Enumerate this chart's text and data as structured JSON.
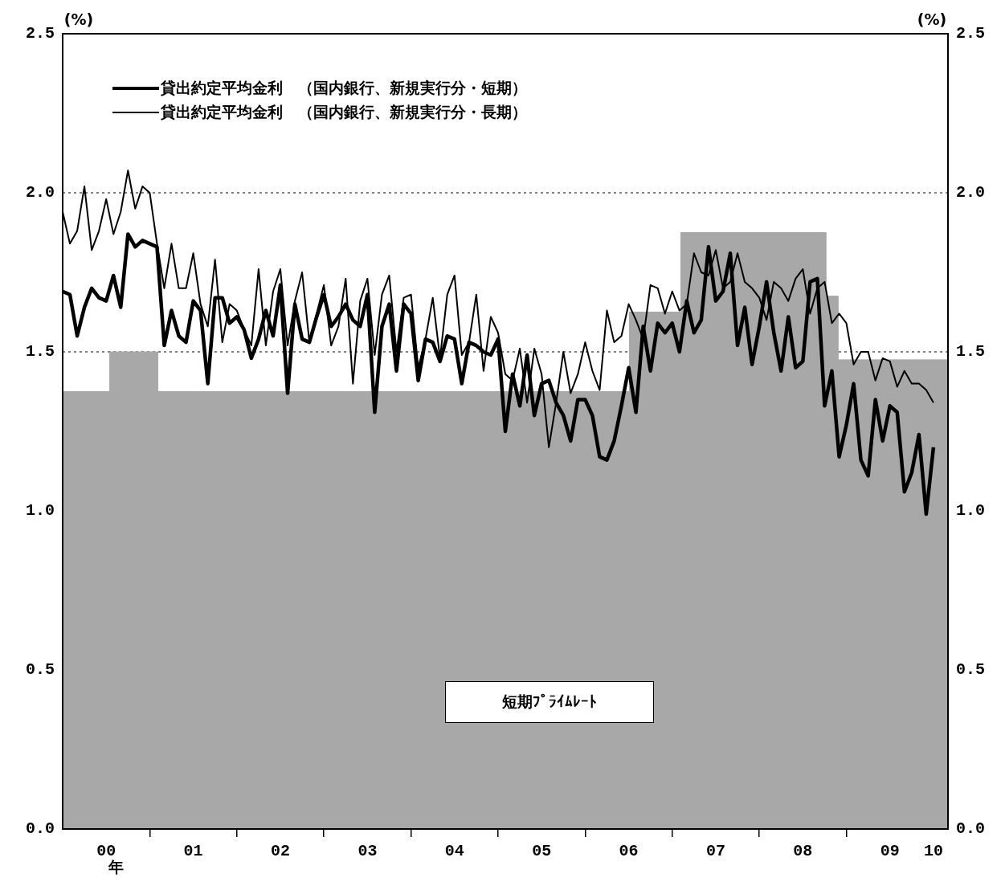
{
  "chart_data": {
    "type": "line",
    "ylabel": "(%)",
    "y2label": "(%)",
    "xlabel": "年",
    "xlim": [
      "2000-01",
      "2010-03"
    ],
    "xticks": [
      {
        "value": "2000-07",
        "label": "00"
      },
      {
        "value": "2001-01",
        "label": null
      },
      {
        "value": "2001-07",
        "label": "01"
      },
      {
        "value": "2002-01",
        "label": null
      },
      {
        "value": "2002-07",
        "label": "02"
      },
      {
        "value": "2003-01",
        "label": null
      },
      {
        "value": "2003-07",
        "label": "03"
      },
      {
        "value": "2004-01",
        "label": null
      },
      {
        "value": "2004-07",
        "label": "04"
      },
      {
        "value": "2005-01",
        "label": null
      },
      {
        "value": "2005-07",
        "label": "05"
      },
      {
        "value": "2006-01",
        "label": null
      },
      {
        "value": "2006-07",
        "label": "06"
      },
      {
        "value": "2007-01",
        "label": null
      },
      {
        "value": "2007-07",
        "label": "07"
      },
      {
        "value": "2008-01",
        "label": null
      },
      {
        "value": "2008-07",
        "label": "08"
      },
      {
        "value": "2009-01",
        "label": null
      },
      {
        "value": "2009-07",
        "label": "09"
      },
      {
        "value": "2010-01",
        "label": "10"
      }
    ],
    "ylim": [
      0,
      2.5
    ],
    "yticks": [
      {
        "value": 0,
        "label": "0.0"
      },
      {
        "value": 0.5,
        "label": "0.5"
      },
      {
        "value": 1,
        "label": "1.0"
      },
      {
        "value": 1.5,
        "label": "1.5"
      },
      {
        "value": 2,
        "label": "2.0"
      },
      {
        "value": 2.5,
        "label": "2.5"
      }
    ],
    "y2lim": [
      0,
      2.5
    ],
    "y2ticks": [
      {
        "value": 0,
        "label": "0.0"
      },
      {
        "value": 0.5,
        "label": "0.5"
      },
      {
        "value": 1,
        "label": "1.0"
      },
      {
        "value": 1.5,
        "label": "1.5"
      },
      {
        "value": 2,
        "label": "2.0"
      },
      {
        "value": 2.5,
        "label": "2.5"
      }
    ],
    "grid": "y",
    "legend": "top left",
    "marker": "none",
    "line_style": "solid",
    "x": [
      "2000-01",
      "2000-02",
      "2000-03",
      "2000-04",
      "2000-05",
      "2000-06",
      "2000-07",
      "2000-08",
      "2000-09",
      "2000-10",
      "2000-11",
      "2000-12",
      "2001-01",
      "2001-02",
      "2001-03",
      "2001-04",
      "2001-05",
      "2001-06",
      "2001-07",
      "2001-08",
      "2001-09",
      "2001-10",
      "2001-11",
      "2001-12",
      "2002-01",
      "2002-02",
      "2002-03",
      "2002-04",
      "2002-05",
      "2002-06",
      "2002-07",
      "2002-08",
      "2002-09",
      "2002-10",
      "2002-11",
      "2002-12",
      "2003-01",
      "2003-02",
      "2003-03",
      "2003-04",
      "2003-05",
      "2003-06",
      "2003-07",
      "2003-08",
      "2003-09",
      "2003-10",
      "2003-11",
      "2003-12",
      "2004-01",
      "2004-02",
      "2004-03",
      "2004-04",
      "2004-05",
      "2004-06",
      "2004-07",
      "2004-08",
      "2004-09",
      "2004-10",
      "2004-11",
      "2004-12",
      "2005-01",
      "2005-02",
      "2005-03",
      "2005-04",
      "2005-05",
      "2005-06",
      "2005-07",
      "2005-08",
      "2005-09",
      "2005-10",
      "2005-11",
      "2005-12",
      "2006-01",
      "2006-02",
      "2006-03",
      "2006-04",
      "2006-05",
      "2006-06",
      "2006-07",
      "2006-08",
      "2006-09",
      "2006-10",
      "2006-11",
      "2006-12",
      "2007-01",
      "2007-02",
      "2007-03",
      "2007-04",
      "2007-05",
      "2007-06",
      "2007-07",
      "2007-08",
      "2007-09",
      "2007-10",
      "2007-11",
      "2007-12",
      "2008-01",
      "2008-02",
      "2008-03",
      "2008-04",
      "2008-05",
      "2008-06",
      "2008-07",
      "2008-08",
      "2008-09",
      "2008-10",
      "2008-11",
      "2008-12",
      "2009-01",
      "2009-02",
      "2009-03",
      "2009-04",
      "2009-05",
      "2009-06",
      "2009-07",
      "2009-08",
      "2009-09",
      "2009-10",
      "2009-11",
      "2009-12",
      "2010-01"
    ],
    "series": [
      {
        "name": "短期ﾌﾟﾗｲﾑﾚｰﾄ",
        "type": "area",
        "color": "#a8a8a8",
        "x": [
          "2000-01",
          "2000-07-16",
          "2000-07-16",
          "2001-02-04",
          "2001-02-04",
          "2006-07-04",
          "2006-07-04",
          "2007-02-06",
          "2007-02-06",
          "2008-10-06",
          "2008-10-06",
          "2008-11-26",
          "2008-11-26",
          "2010-03"
        ],
        "values": [
          1.375,
          1.375,
          1.5,
          1.5,
          1.375,
          1.375,
          1.625,
          1.625,
          1.875,
          1.875,
          1.675,
          1.675,
          1.475,
          1.475
        ]
      },
      {
        "name": "貸出約定平均金利　（国内銀行、新規実行分・短期）",
        "color": "#000000",
        "values": [
          1.69,
          1.68,
          1.55,
          1.64,
          1.7,
          1.67,
          1.66,
          1.74,
          1.64,
          1.87,
          1.83,
          1.85,
          1.84,
          1.83,
          1.52,
          1.63,
          1.55,
          1.53,
          1.66,
          1.63,
          1.4,
          1.67,
          1.67,
          1.59,
          1.61,
          1.57,
          1.48,
          1.54,
          1.63,
          1.55,
          1.71,
          1.37,
          1.65,
          1.54,
          1.53,
          1.61,
          1.68,
          1.58,
          1.61,
          1.65,
          1.6,
          1.58,
          1.68,
          1.31,
          1.58,
          1.65,
          1.44,
          1.65,
          1.62,
          1.41,
          1.54,
          1.53,
          1.47,
          1.55,
          1.54,
          1.4,
          1.53,
          1.52,
          1.5,
          1.49,
          1.54,
          1.25,
          1.43,
          1.33,
          1.49,
          1.3,
          1.4,
          1.41,
          1.34,
          1.3,
          1.22,
          1.35,
          1.35,
          1.3,
          1.17,
          1.16,
          1.22,
          1.33,
          1.45,
          1.31,
          1.58,
          1.44,
          1.59,
          1.56,
          1.59,
          1.5,
          1.66,
          1.56,
          1.6,
          1.83,
          1.66,
          1.69,
          1.81,
          1.52,
          1.64,
          1.46,
          1.58,
          1.72,
          1.56,
          1.44,
          1.61,
          1.45,
          1.47,
          1.72,
          1.73,
          1.33,
          1.44,
          1.17,
          1.27,
          1.4,
          1.16,
          1.11,
          1.35,
          1.22,
          1.33,
          1.31,
          1.06,
          1.12,
          1.24,
          0.99,
          1.2
        ]
      },
      {
        "name": "貸出約定平均金利　（国内銀行、新規実行分・長期）",
        "color": "#000000",
        "values": [
          1.94,
          1.84,
          1.88,
          2.02,
          1.82,
          1.88,
          1.98,
          1.87,
          1.94,
          2.07,
          1.95,
          2.02,
          2.0,
          1.84,
          1.7,
          1.84,
          1.7,
          1.7,
          1.81,
          1.65,
          1.58,
          1.79,
          1.53,
          1.65,
          1.63,
          1.57,
          1.52,
          1.76,
          1.52,
          1.69,
          1.76,
          1.52,
          1.66,
          1.75,
          1.53,
          1.62,
          1.71,
          1.52,
          1.58,
          1.73,
          1.4,
          1.66,
          1.73,
          1.49,
          1.68,
          1.74,
          1.5,
          1.67,
          1.68,
          1.45,
          1.54,
          1.67,
          1.48,
          1.68,
          1.74,
          1.49,
          1.53,
          1.68,
          1.44,
          1.61,
          1.56,
          1.43,
          1.41,
          1.51,
          1.34,
          1.51,
          1.43,
          1.2,
          1.34,
          1.5,
          1.37,
          1.43,
          1.53,
          1.44,
          1.38,
          1.63,
          1.53,
          1.55,
          1.65,
          1.6,
          1.54,
          1.71,
          1.7,
          1.62,
          1.69,
          1.63,
          1.65,
          1.81,
          1.75,
          1.74,
          1.82,
          1.7,
          1.72,
          1.81,
          1.72,
          1.7,
          1.67,
          1.6,
          1.72,
          1.7,
          1.66,
          1.73,
          1.76,
          1.62,
          1.7,
          1.72,
          1.59,
          1.62,
          1.59,
          1.46,
          1.5,
          1.5,
          1.41,
          1.48,
          1.47,
          1.39,
          1.44,
          1.4,
          1.4,
          1.38,
          1.34
        ]
      }
    ]
  }
}
